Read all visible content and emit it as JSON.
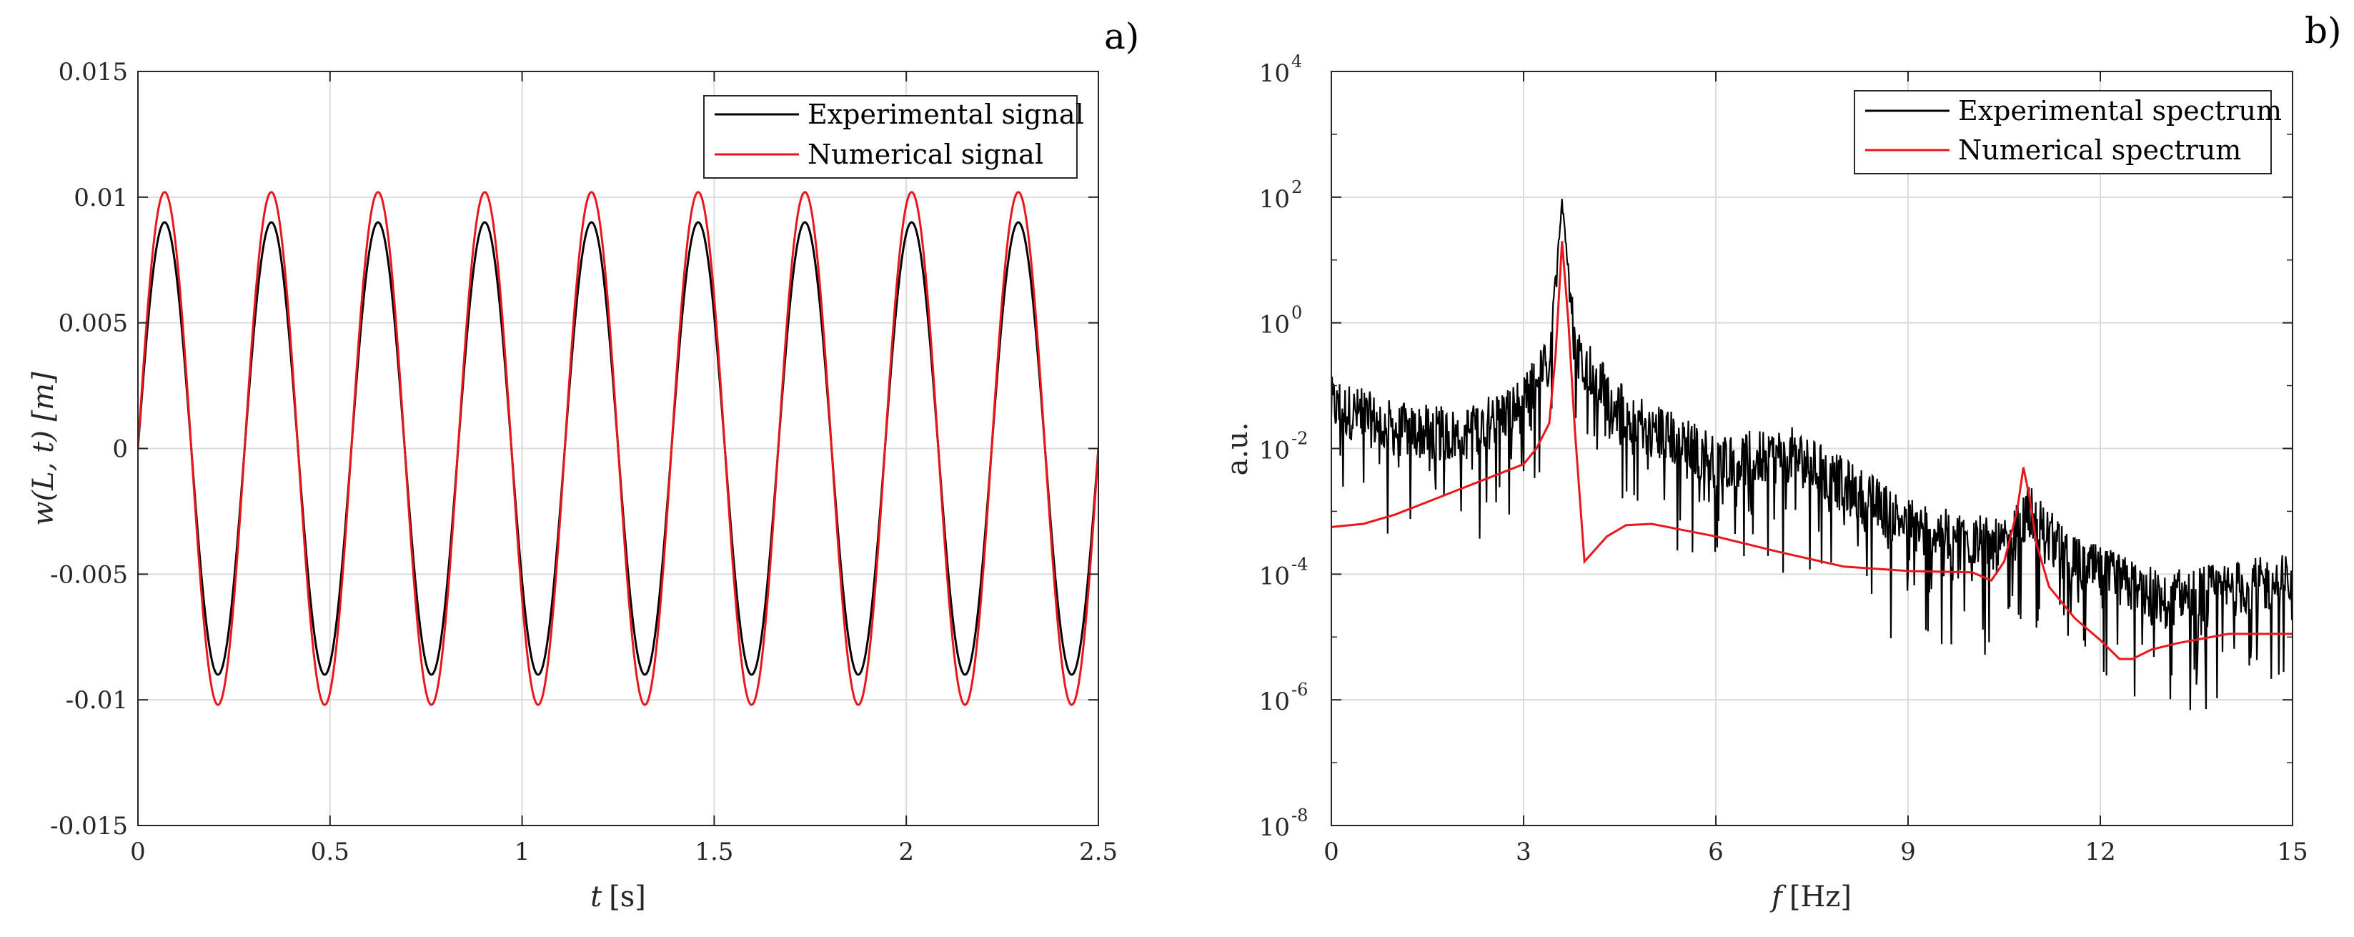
{
  "chart_data": [
    {
      "type": "line",
      "panel_label": "a)",
      "xlabel_var": "t",
      "xlabel_unit": "[s]",
      "ylabel": "w(L, t) [m]",
      "xlim": [
        0,
        2.5
      ],
      "ylim": [
        -0.015,
        0.015
      ],
      "grid": true,
      "legend_position": "top-right",
      "x_ticks": [
        0,
        0.5,
        1,
        1.5,
        2,
        2.5
      ],
      "x_tick_labels": [
        "0",
        "0.5",
        "1",
        "1.5",
        "2",
        "2.5"
      ],
      "y_ticks": [
        -0.015,
        -0.01,
        -0.005,
        0,
        0.005,
        0.01,
        0.015
      ],
      "y_tick_labels": [
        "-0.015",
        "-0.01",
        "-0.005",
        "0",
        "0.005",
        "0.01",
        "0.015"
      ],
      "series": [
        {
          "name": "Experimental signal",
          "color": "#000000",
          "amplitude": 0.009,
          "frequency_hz": 3.6
        },
        {
          "name": "Numerical signal",
          "color": "#e8171c",
          "amplitude": 0.0102,
          "frequency_hz": 3.6
        }
      ],
      "labels": {
        "series_0": "Experimental signal",
        "series_1": "Numerical signal"
      }
    },
    {
      "type": "line",
      "panel_label": "b)",
      "xlabel_var": "f",
      "xlabel_unit": "[Hz]",
      "ylabel": "a.u.",
      "xlim": [
        0,
        15
      ],
      "ylim_log10": [
        -8,
        4
      ],
      "yscale": "log",
      "grid": true,
      "legend_position": "top-right",
      "x_ticks": [
        0,
        3,
        6,
        9,
        12,
        15
      ],
      "x_tick_labels": [
        "0",
        "3",
        "6",
        "9",
        "12",
        "15"
      ],
      "y_ticks_log10": [
        -8,
        -6,
        -4,
        -2,
        0,
        2,
        4
      ],
      "y_tick_exponents": [
        "-8",
        "-6",
        "-4",
        "-2",
        "0",
        "2",
        "4"
      ],
      "y_tick_base": "10",
      "series": [
        {
          "name": "Experimental spectrum",
          "color": "#000000",
          "envelope": [
            [
              0,
              -1.3
            ],
            [
              1.0,
              -1.7
            ],
            [
              2.0,
              -1.8
            ],
            [
              3.0,
              -1.3
            ],
            [
              3.4,
              -0.6
            ],
            [
              3.6,
              2.0
            ],
            [
              3.8,
              -0.4
            ],
            [
              4.5,
              -1.4
            ],
            [
              6.0,
              -2.2
            ],
            [
              7.2,
              -2.1
            ],
            [
              9.0,
              -3.2
            ],
            [
              10.5,
              -3.6
            ],
            [
              10.9,
              -3.0
            ],
            [
              11.5,
              -3.8
            ],
            [
              13.0,
              -4.4
            ],
            [
              15.0,
              -4.1
            ]
          ]
        },
        {
          "name": "Numerical spectrum",
          "color": "#e8171c",
          "x": [
            0,
            0.5,
            1,
            1.5,
            2,
            2.5,
            3.0,
            3.2,
            3.4,
            3.5,
            3.6,
            3.7,
            3.8,
            3.95,
            4.3,
            4.6,
            5.0,
            5.5,
            6.0,
            7.0,
            8.0,
            9.0,
            10.0,
            10.3,
            10.5,
            10.7,
            10.8,
            10.9,
            11.0,
            11.2,
            11.6,
            12.0,
            12.3,
            12.5,
            12.8,
            13.2,
            14.0,
            15.0
          ],
          "log10_y": [
            -3.25,
            -3.2,
            -3.05,
            -2.85,
            -2.65,
            -2.45,
            -2.25,
            -2.0,
            -1.6,
            -0.5,
            1.3,
            0.0,
            -1.7,
            -3.8,
            -3.4,
            -3.22,
            -3.2,
            -3.3,
            -3.4,
            -3.65,
            -3.88,
            -3.95,
            -3.97,
            -4.1,
            -3.8,
            -3.0,
            -2.3,
            -2.8,
            -3.5,
            -4.2,
            -4.7,
            -5.05,
            -5.35,
            -5.35,
            -5.2,
            -5.1,
            -4.95,
            -4.95
          ]
        }
      ],
      "labels": {
        "series_0": "Experimental spectrum",
        "series_1": "Numerical spectrum"
      }
    }
  ]
}
